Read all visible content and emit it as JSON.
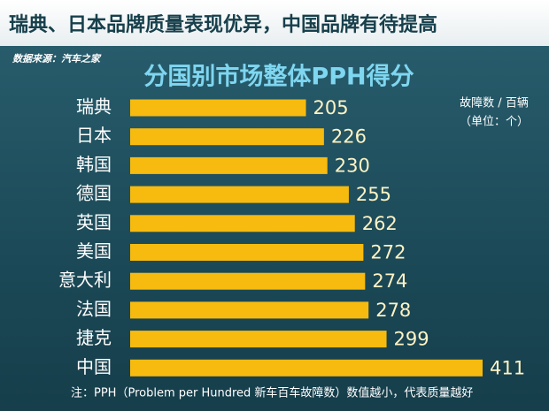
{
  "header": {
    "title": "瑞典、日本品牌质量表现优异，中国品牌有待提高",
    "source": "数据来源：汽车之家"
  },
  "chart_data": {
    "type": "bar",
    "orientation": "horizontal",
    "title": "分国别市场整体PPH得分",
    "unit_lines": [
      "故障数 / 百辆",
      "（单位：个）"
    ],
    "categories": [
      "瑞典",
      "日本",
      "韩国",
      "德国",
      "英国",
      "美国",
      "意大利",
      "法国",
      "捷克",
      "中国"
    ],
    "values": [
      205,
      226,
      230,
      255,
      262,
      272,
      274,
      278,
      299,
      411
    ],
    "color": "#f7bb0f",
    "value_label_color": "#fff3c4",
    "note": "注：PPH（Problem per Hundred 新车百车故障数）数值越小，代表质量越好"
  }
}
